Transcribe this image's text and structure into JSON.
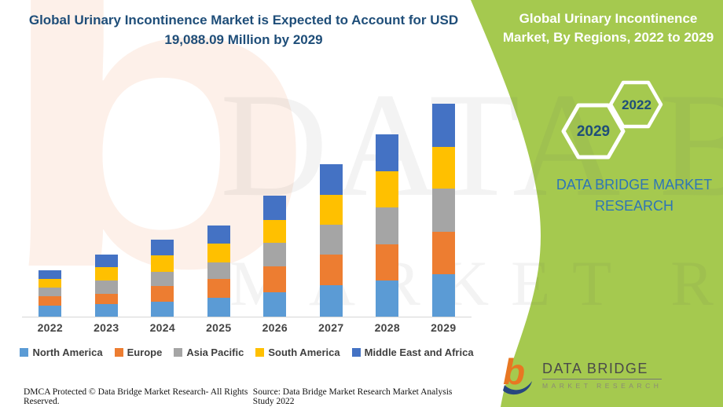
{
  "titles": {
    "left": "Global Urinary Incontinence Market is Expected to Account for USD 19,088.09 Million by 2029",
    "right": "Global Urinary Incontinence Market, By Regions, 2022 to 2029"
  },
  "side_panel": {
    "hex_large_year": "2029",
    "hex_small_year": "2022",
    "brand_caption": "DATA BRIDGE MARKET RESEARCH"
  },
  "logo": {
    "title": "DATA BRIDGE",
    "subtitle": "MARKET RESEARCH"
  },
  "watermarks": {
    "letter": "b",
    "row1": "DATA BRIDGE",
    "row2": "MARKET RESEARCH"
  },
  "footer": {
    "dmca": "DMCA Protected © Data Bridge Market Research- All Rights Reserved.",
    "source": "Source: Data Bridge Market Research Market Analysis Study 2022"
  },
  "colors": {
    "panel_green": "#A5C94F",
    "title_blue": "#1F4E79",
    "brand_blue": "#2E75B6",
    "logo_orange": "#E87722",
    "logo_navy": "#27477F",
    "axis_line": "#D6D6D6"
  },
  "chart_data": {
    "type": "bar",
    "stacked": true,
    "title": "Global Urinary Incontinence Market, By Regions, 2022 to 2029",
    "unit": "USD Million",
    "values_estimated_from_pixels": true,
    "highlight_total": {
      "year": "2029",
      "value": 19088.09
    },
    "categories": [
      "2022",
      "2023",
      "2024",
      "2025",
      "2026",
      "2027",
      "2028",
      "2029"
    ],
    "series": [
      {
        "name": "North America",
        "color": "#5B9BD5",
        "values": [
          1010,
          1130,
          1320,
          1710,
          2180,
          2840,
          3240,
          3790
        ]
      },
      {
        "name": "Europe",
        "color": "#ED7D31",
        "values": [
          800,
          940,
          1410,
          1640,
          2350,
          2750,
          3240,
          3810
        ]
      },
      {
        "name": "Asia Pacific",
        "color": "#A5A5A5",
        "values": [
          775,
          1180,
          1270,
          1530,
          2060,
          2630,
          3290,
          3875
        ]
      },
      {
        "name": "South America",
        "color": "#FFC000",
        "values": [
          775,
          1220,
          1530,
          1690,
          2090,
          2700,
          3290,
          3745
        ]
      },
      {
        "name": "Middle East and Africa",
        "color": "#4472C4",
        "values": [
          795,
          1130,
          1390,
          1600,
          2180,
          2730,
          3260,
          3868.09
        ]
      }
    ],
    "totals": [
      4155,
      5600,
      6920,
      8170,
      10860,
      13650,
      16320,
      19088.09
    ],
    "legend_position": "bottom",
    "gridlines": false,
    "y_axis_visible": false
  }
}
